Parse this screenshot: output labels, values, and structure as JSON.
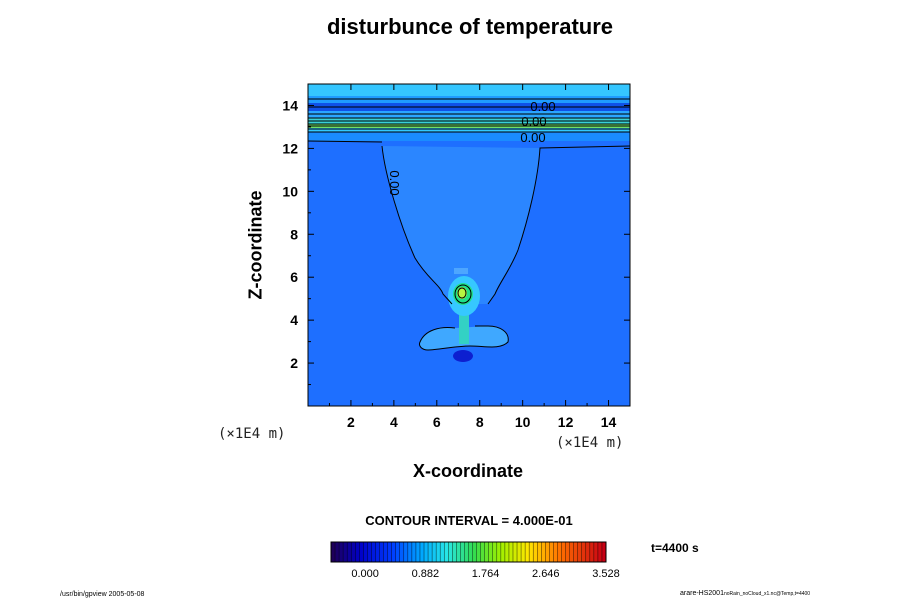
{
  "chart_data": {
    "type": "heatmap",
    "title": "disturbunce of temperature",
    "xlabel": "X-coordinate",
    "ylabel": "Z-coordinate",
    "x_unit": "(×1E4 m)",
    "y_unit": "(×1E4 m)",
    "xlim": [
      0,
      15
    ],
    "ylim": [
      0,
      15
    ],
    "x_ticks": [
      2,
      4,
      6,
      8,
      10,
      12,
      14
    ],
    "y_ticks": [
      2,
      4,
      6,
      8,
      10,
      12,
      14
    ],
    "contour_interval_text": "CONTOUR INTERVAL = 4.000E-01",
    "contour_labels": [
      "0.00",
      "0.00",
      "0.00",
      "0.00"
    ],
    "time_text": "t=4400 s",
    "colorbar": {
      "min": -0.5,
      "max": 3.528,
      "tick_values": [
        0.0,
        0.882,
        1.764,
        2.646,
        3.528
      ],
      "tick_labels": [
        "0.000",
        "0.882",
        "1.764",
        "2.646",
        "3.528"
      ]
    },
    "colors": {
      "background_field": "#1e6fff",
      "upper_band": "#35c6ff",
      "core": "#1fd38f",
      "contour": "#000000"
    }
  },
  "footer": {
    "left": "/usr/bin/gpview 2005-05-08",
    "right_main": "arare-HS2001",
    "right_sub": "noRain_noCloud_x1.nc@Temp,t=4400"
  }
}
